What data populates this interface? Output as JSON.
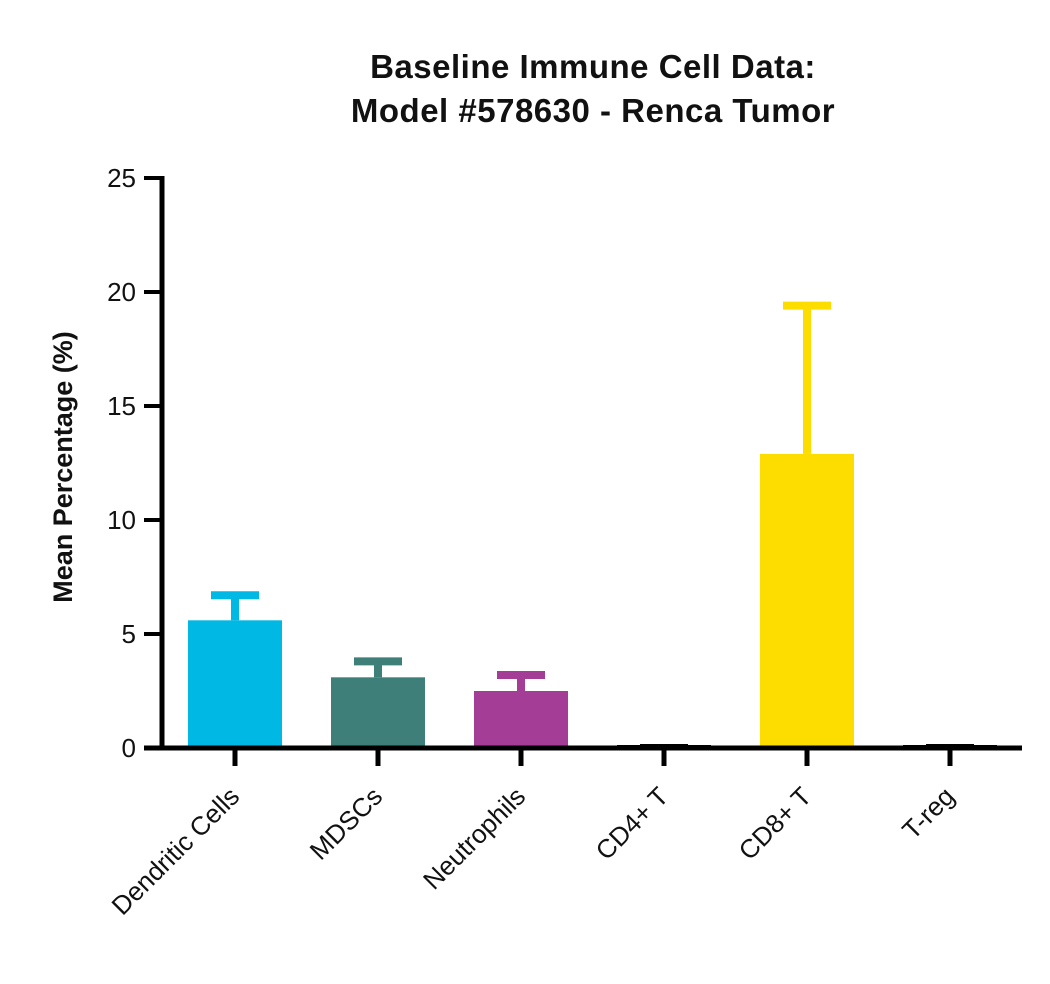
{
  "chart_data": {
    "type": "bar",
    "title_lines": [
      "Baseline Immune  Cell Data:",
      "Model #578630 - Renca Tumor"
    ],
    "xlabel": "",
    "ylabel": "Mean Percentage (%)",
    "ylim": [
      0,
      25
    ],
    "yticks": [
      "0",
      "5",
      "10",
      "15",
      "20",
      "25"
    ],
    "categories": [
      "Dendritic Cells",
      "MDSCs",
      "Neutrophils",
      "CD4+ T",
      "CD8+ T",
      "T-reg"
    ],
    "values": [
      5.6,
      3.1,
      2.5,
      0.1,
      12.9,
      0.1
    ],
    "error_upper": [
      6.7,
      3.8,
      3.2,
      0.1,
      19.4,
      0.1
    ],
    "colors": [
      "#00b8e4",
      "#3f7f7a",
      "#a43d96",
      "#000000",
      "#fddd00",
      "#000000"
    ],
    "grid": false,
    "legend": "none"
  }
}
